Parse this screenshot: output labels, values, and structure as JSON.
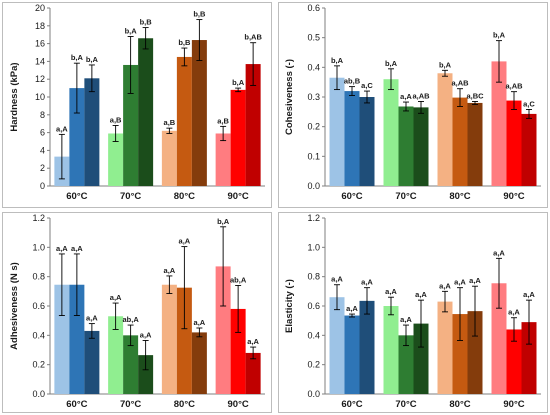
{
  "colors": {
    "panel_border": "#bdbdbd",
    "axis": "#7f7f7f",
    "text": "#1a1a1a",
    "error_bar": "#000000"
  },
  "chart_data": [
    {
      "type": "bar",
      "title": "",
      "xlabel": "",
      "ylabel": "Hardness (kPa)",
      "ylim": [
        0,
        20
      ],
      "yticks": [
        0,
        2,
        4,
        6,
        8,
        10,
        12,
        14,
        16,
        18,
        20
      ],
      "grid": false,
      "categories": [
        "60°C",
        "70°C",
        "80°C",
        "90°C"
      ],
      "bar_colors": [
        [
          "#9dc3e6",
          "#2e75b6",
          "#1f4e79"
        ],
        [
          "#90ee90",
          "#2e7d32",
          "#1b4d1b"
        ],
        [
          "#f4b183",
          "#c55a11",
          "#843c0c"
        ],
        [
          "#ff7c80",
          "#ff0000",
          "#c00000"
        ]
      ],
      "values": [
        [
          3.3,
          11.0,
          12.1
        ],
        [
          5.9,
          13.6,
          16.6
        ],
        [
          6.2,
          14.5,
          16.4
        ],
        [
          5.9,
          10.8,
          13.7
        ]
      ],
      "errors": [
        [
          2.5,
          2.8,
          1.5
        ],
        [
          0.9,
          3.2,
          1.2
        ],
        [
          0.3,
          1.0,
          2.3
        ],
        [
          0.8,
          0.2,
          2.4
        ]
      ],
      "labels": [
        [
          "a,A",
          "b,A",
          "b,A"
        ],
        [
          "a,B",
          "b,A",
          "b,B"
        ],
        [
          "a,B",
          "b,B",
          "b,B"
        ],
        [
          "a,B",
          "b,A",
          "b,AB"
        ]
      ]
    },
    {
      "type": "bar",
      "title": "",
      "xlabel": "",
      "ylabel": "Cohesiveness (-)",
      "ylim": [
        0,
        0.6
      ],
      "yticks": [
        0,
        0.1,
        0.2,
        0.3,
        0.4,
        0.5,
        0.6
      ],
      "grid": false,
      "categories": [
        "60°C",
        "70°C",
        "80°C",
        "90°C"
      ],
      "bar_colors": [
        [
          "#9dc3e6",
          "#2e75b6",
          "#1f4e79"
        ],
        [
          "#90ee90",
          "#2e7d32",
          "#1b4d1b"
        ],
        [
          "#f4b183",
          "#c55a11",
          "#843c0c"
        ],
        [
          "#ff7c80",
          "#ff0000",
          "#c00000"
        ]
      ],
      "values": [
        [
          0.365,
          0.32,
          0.3
        ],
        [
          0.36,
          0.268,
          0.265
        ],
        [
          0.38,
          0.298,
          0.28
        ],
        [
          0.42,
          0.288,
          0.243
        ]
      ],
      "errors": [
        [
          0.04,
          0.015,
          0.02
        ],
        [
          0.035,
          0.015,
          0.02
        ],
        [
          0.01,
          0.03,
          0.005
        ],
        [
          0.07,
          0.03,
          0.015
        ]
      ],
      "labels": [
        [
          "b,A",
          "ab,B",
          "a,C"
        ],
        [
          "b,A",
          "a,A",
          "a,AB"
        ],
        [
          "b,A",
          "a,AB",
          "a,BC"
        ],
        [
          "b,A",
          "a,AB",
          "a,C"
        ]
      ]
    },
    {
      "type": "bar",
      "title": "",
      "xlabel": "",
      "ylabel": "Adhesiveness (N s)",
      "ylim": [
        0,
        1.2
      ],
      "yticks": [
        0,
        0.2,
        0.4,
        0.6,
        0.8,
        1.0,
        1.2
      ],
      "grid": false,
      "categories": [
        "60°C",
        "70°C",
        "80°C",
        "90°C"
      ],
      "bar_colors": [
        [
          "#9dc3e6",
          "#2e75b6",
          "#1f4e79"
        ],
        [
          "#90ee90",
          "#2e7d32",
          "#1b4d1b"
        ],
        [
          "#f4b183",
          "#c55a11",
          "#843c0c"
        ],
        [
          "#ff7c80",
          "#ff0000",
          "#c00000"
        ]
      ],
      "values": [
        [
          0.745,
          0.745,
          0.43
        ],
        [
          0.53,
          0.4,
          0.265
        ],
        [
          0.745,
          0.725,
          0.42
        ],
        [
          0.87,
          0.58,
          0.28
        ]
      ],
      "errors": [
        [
          0.21,
          0.21,
          0.05
        ],
        [
          0.09,
          0.07,
          0.1
        ],
        [
          0.06,
          0.28,
          0.03
        ],
        [
          0.27,
          0.16,
          0.04
        ]
      ],
      "labels": [
        [
          "a,A",
          "a,A",
          "a,A"
        ],
        [
          "a,A",
          "ab,A",
          "a,A"
        ],
        [
          "a,A",
          "a,A",
          "a,A"
        ],
        [
          "b,A",
          "ab,A",
          "a,A"
        ]
      ]
    },
    {
      "type": "bar",
      "title": "",
      "xlabel": "",
      "ylabel": "Elasticity (-)",
      "ylim": [
        0,
        1.2
      ],
      "yticks": [
        0,
        0.2,
        0.4,
        0.6,
        0.8,
        1.0,
        1.2
      ],
      "grid": false,
      "categories": [
        "60°C",
        "70°C",
        "80°C",
        "90°C"
      ],
      "bar_colors": [
        [
          "#9dc3e6",
          "#2e75b6",
          "#1f4e79"
        ],
        [
          "#90ee90",
          "#2e7d32",
          "#1b4d1b"
        ],
        [
          "#f4b183",
          "#c55a11",
          "#843c0c"
        ],
        [
          "#ff7c80",
          "#ff0000",
          "#c00000"
        ]
      ],
      "values": [
        [
          0.66,
          0.535,
          0.635
        ],
        [
          0.6,
          0.4,
          0.48
        ],
        [
          0.63,
          0.545,
          0.565
        ],
        [
          0.755,
          0.44,
          0.49
        ]
      ],
      "errors": [
        [
          0.085,
          0.01,
          0.09
        ],
        [
          0.06,
          0.07,
          0.16
        ],
        [
          0.07,
          0.18,
          0.17
        ],
        [
          0.17,
          0.08,
          0.15
        ]
      ],
      "labels": [
        [
          "a,A",
          "a,A",
          "a,A"
        ],
        [
          "a,A",
          "a,A",
          "a,A"
        ],
        [
          "a,A",
          "a,A",
          "a,A"
        ],
        [
          "a,A",
          "a,A",
          "a,A"
        ]
      ]
    }
  ]
}
